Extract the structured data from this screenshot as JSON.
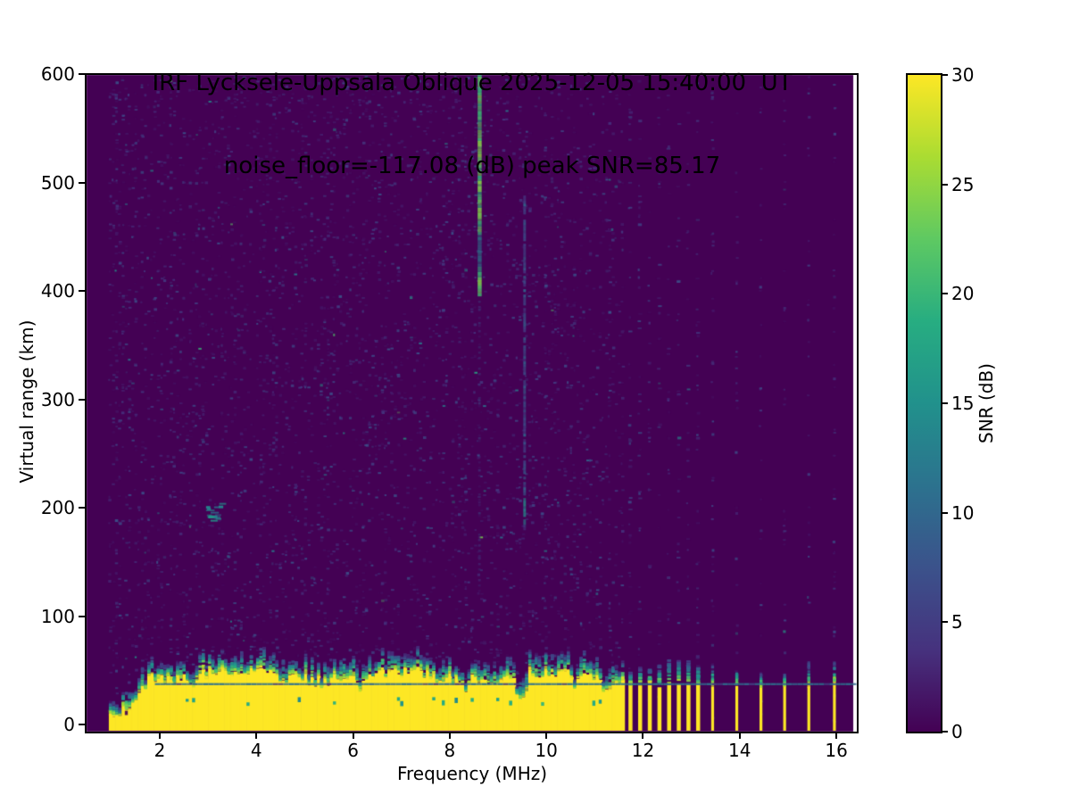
{
  "chart_data": {
    "type": "heatmap",
    "title_line1": "IRF Lycksele-Uppsala Oblique 2025-12-05 15:40:00  UT",
    "title_line2": "noise_floor=-117.08 (dB) peak SNR=85.17",
    "xlabel": "Frequency (MHz)",
    "ylabel": "Virtual range (km)",
    "xlim": [
      0.468,
      16.46
    ],
    "ylim": [
      -6.2,
      600
    ],
    "xticks": [
      2,
      4,
      6,
      8,
      10,
      12,
      14,
      16
    ],
    "yticks": [
      0,
      100,
      200,
      300,
      400,
      500,
      600
    ],
    "grid": false,
    "colormap_name": "viridis",
    "viridis_stops": [
      "#440154",
      "#46327e",
      "#3b528b",
      "#2c728e",
      "#21918c",
      "#27ad81",
      "#5ec962",
      "#aadc32",
      "#fde725"
    ],
    "background_value_color": "#440154",
    "no_data_color": "#ffffff",
    "colorbar": {
      "label": "SNR (dB)",
      "ticks": [
        0,
        5,
        10,
        15,
        20,
        25,
        30
      ],
      "vmin": 0,
      "vmax": 30,
      "position": "right"
    },
    "sounding": {
      "no_data_below_mhz": 0.95,
      "no_data_above_mhz": 16.35,
      "dense_start_mhz": 0.98,
      "dense_end_mhz": 11.58,
      "dense_steps": 160,
      "cluster_stripes_mhz": [
        11.74,
        11.94,
        12.14,
        12.34,
        12.54,
        12.74,
        12.94,
        13.14
      ],
      "isolated_stripes_mhz": [
        13.44,
        13.94,
        14.44,
        14.93,
        15.43,
        15.96
      ]
    },
    "ground_echo_band": {
      "full_top_km_mean": 45,
      "top_jitter_km": 6,
      "ramp_start_mhz": 0.98,
      "ramp_full_mhz": 1.8,
      "ramp_start_top_km": 10,
      "fringe_min_km": 7,
      "fringe_extra_km": 14,
      "stripe_top_km": 36,
      "scatter_line_km": 38.5,
      "scatter_line_color": "#2d708e",
      "notches": [
        {
          "mhz": 2.65,
          "depth_km": 9
        },
        {
          "mhz": 6.17,
          "depth_km": 11
        },
        {
          "mhz": 8.33,
          "depth_km": 9
        },
        {
          "mhz": 9.48,
          "depth_km": 18
        },
        {
          "mhz": 10.6,
          "depth_km": 9
        },
        {
          "mhz": 11.25,
          "depth_km": 10
        }
      ]
    },
    "streaks": [
      {
        "mhz": 8.62,
        "top_km": 600,
        "bottom_km": 396,
        "snr": 22,
        "dim_top_km": 452,
        "dim_bottom_km": 424,
        "kind": "bright-green-echo"
      },
      {
        "mhz": 9.55,
        "top_km": 488,
        "bottom_km": 182,
        "snr": 7,
        "bright_top_km": 212,
        "bright_bottom_km": 186,
        "kind": "faint-blue-echo"
      }
    ],
    "blobs": [
      {
        "mhz_from": 2.95,
        "mhz_to": 3.24,
        "km_from": 188,
        "km_to": 205,
        "snr": 13
      }
    ],
    "noise": {
      "seed": 20251205,
      "per_column_dashes_min": 16,
      "per_column_dashes_max": 40,
      "hot_column_prob": 0.06,
      "teal_prob": 0.015,
      "green_prob": 0.004
    }
  }
}
